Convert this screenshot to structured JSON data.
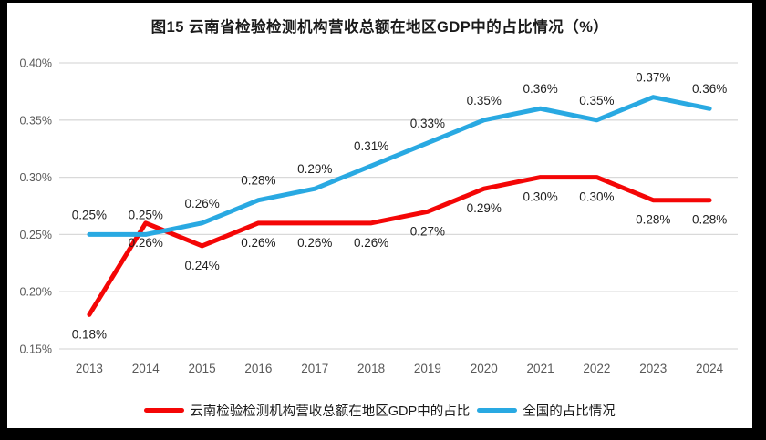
{
  "title": "图15 云南省检验检测机构营收总额在地区GDP中的占比情况（%）",
  "chart_data": {
    "type": "line",
    "title": "图15 云南省检验检测机构营收总额在地区GDP中的占比情况（%）",
    "categories": [
      "2013",
      "2014",
      "2015",
      "2016",
      "2017",
      "2018",
      "2019",
      "2020",
      "2021",
      "2022",
      "2023",
      "2024"
    ],
    "series": [
      {
        "name": "云南检验检测机构营收总额在地区GDP中的占比",
        "color": "#F40606",
        "label_position": "below",
        "values": [
          0.18,
          0.26,
          0.24,
          0.26,
          0.26,
          0.26,
          0.27,
          0.29,
          0.3,
          0.3,
          0.28,
          0.28
        ],
        "labels": [
          "0.18%",
          "0.26%",
          "0.24%",
          "0.26%",
          "0.26%",
          "0.26%",
          "0.27%",
          "0.29%",
          "0.30%",
          "0.30%",
          "0.28%",
          "0.28%"
        ]
      },
      {
        "name": "全国的占比情况",
        "color": "#29A9E2",
        "label_position": "above",
        "values": [
          0.25,
          0.25,
          0.26,
          0.28,
          0.29,
          0.31,
          0.33,
          0.35,
          0.36,
          0.35,
          0.37,
          0.36
        ],
        "labels": [
          "0.25%",
          "0.25%",
          "0.26%",
          "0.28%",
          "0.29%",
          "0.31%",
          "0.33%",
          "0.35%",
          "0.36%",
          "0.35%",
          "0.37%",
          "0.36%"
        ]
      }
    ],
    "ylim": [
      0.15,
      0.4
    ],
    "yticks": {
      "values": [
        0.4,
        0.35,
        0.3,
        0.25,
        0.2,
        0.15
      ],
      "labels": [
        "0.40%",
        "0.35%",
        "0.30%",
        "0.25%",
        "0.20%",
        "0.15%"
      ]
    },
    "grid": true,
    "legend_position": "bottom",
    "colors": {
      "gridline": "#D9D9D9",
      "axis_text": "#595959",
      "data_label_text": "#1f1f1f",
      "background": "#ffffff",
      "frame_border": "#000000"
    }
  }
}
